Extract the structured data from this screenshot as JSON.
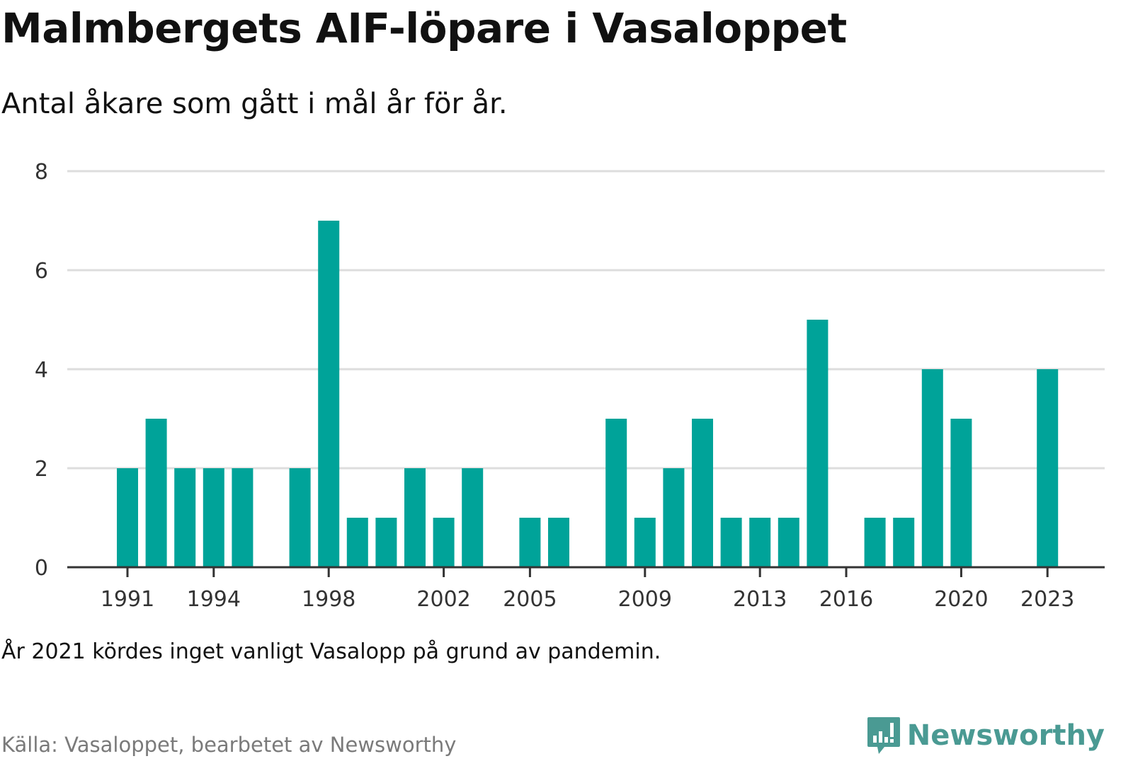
{
  "title": "Malmbergets AIF-löpare i Vasaloppet",
  "subtitle": "Antal åkare som gått i mål år för år.",
  "note": "År 2021 kördes inget vanligt Vasalopp på grund av pandemin.",
  "source": "Källa: Vasaloppet, bearbetet av Newsworthy",
  "brand": {
    "name": "Newsworthy",
    "icon": "newsworthy-logo-icon",
    "color": "#4a9a93"
  },
  "chart_data": {
    "type": "bar",
    "x": [
      1991,
      1992,
      1993,
      1994,
      1995,
      1996,
      1997,
      1998,
      1999,
      2000,
      2001,
      2002,
      2003,
      2004,
      2005,
      2006,
      2007,
      2008,
      2009,
      2010,
      2011,
      2012,
      2013,
      2014,
      2015,
      2016,
      2017,
      2018,
      2019,
      2020,
      2021,
      2022,
      2023
    ],
    "values": [
      2,
      3,
      2,
      2,
      2,
      0,
      2,
      7,
      1,
      1,
      2,
      1,
      2,
      0,
      1,
      1,
      0,
      3,
      1,
      2,
      3,
      1,
      1,
      1,
      5,
      0,
      1,
      1,
      4,
      3,
      0,
      0,
      4
    ],
    "x_tick_labels": [
      "1991",
      "1994",
      "1998",
      "2002",
      "2005",
      "2009",
      "2013",
      "2016",
      "2020",
      "2023"
    ],
    "y_ticks": [
      0,
      2,
      4,
      6,
      8
    ],
    "ylim": [
      0,
      8
    ],
    "bar_color": "#00a399",
    "grid": true
  }
}
